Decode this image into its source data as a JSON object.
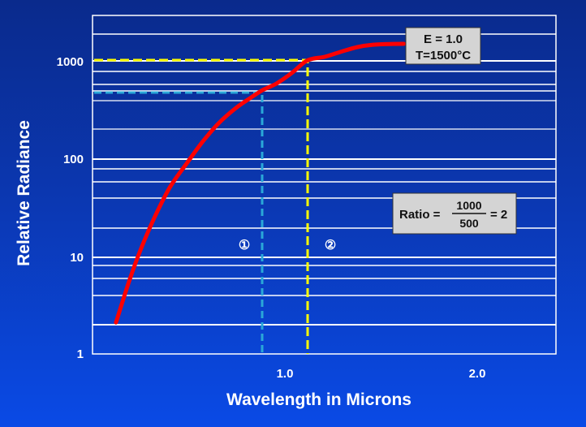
{
  "chart_data": {
    "type": "line",
    "title": "",
    "xlabel": "Wavelength in Microns",
    "ylabel": "Relative Radiance",
    "yscale": "log",
    "ylim": [
      1,
      3000
    ],
    "xlim": [
      0.0,
      2.4
    ],
    "x_ticks": [
      {
        "value": 1.0,
        "label": "1.0"
      },
      {
        "value": 2.0,
        "label": "2.0"
      }
    ],
    "y_ticks": [
      {
        "value": 1,
        "label": "1"
      },
      {
        "value": 10,
        "label": "10"
      },
      {
        "value": 100,
        "label": "100"
      },
      {
        "value": 1000,
        "label": "1000"
      }
    ],
    "grid": true,
    "series": [
      {
        "name": "E = 1.0, T=1500°C",
        "color": "#ff0000",
        "x": [
          0.13,
          0.2,
          0.26,
          0.33,
          0.41,
          0.5,
          0.58,
          0.66,
          0.75,
          0.83,
          0.89,
          0.96,
          1.04,
          1.12,
          1.21,
          1.29,
          1.38,
          1.46,
          1.55,
          1.62
        ],
        "values": [
          2.1,
          5.7,
          12,
          25,
          51,
          91,
          149,
          227,
          326,
          419,
          500,
          580,
          745,
          1000,
          1090,
          1220,
          1370,
          1450,
          1475,
          1480
        ]
      }
    ],
    "reference_lines": [
      {
        "id": "1",
        "label": "①",
        "wavelength": 0.89,
        "radiance": 500,
        "color": "#2aa8d8",
        "style": "dashed"
      },
      {
        "id": "2",
        "label": "②",
        "wavelength": 1.12,
        "radiance": 1000,
        "color": "#ffff00",
        "style": "dashed"
      }
    ],
    "annotations": [
      {
        "text_line1": "E = 1.0",
        "text_line2": "T=1500°C"
      },
      {
        "text": "Ratio = 1000/500 = 2",
        "prefix": "Ratio =",
        "numerator": "1000",
        "denominator": "500",
        "suffix": "= 2"
      }
    ],
    "legend_position": "none"
  },
  "labels": {
    "y_axis_title": "Relative Radiance",
    "x_axis_title": "Wavelength in Microns",
    "y_tick_1": "1",
    "y_tick_10": "10",
    "y_tick_100": "100",
    "y_tick_1000": "1000",
    "x_tick_1": "1.0",
    "x_tick_2": "2.0",
    "marker_1": "①",
    "marker_2": "②",
    "curve_box_line1": "E = 1.0",
    "curve_box_line2": "T=1500°C",
    "ratio_prefix": "Ratio =",
    "ratio_numerator": "1000",
    "ratio_denominator": "500",
    "ratio_suffix": "= 2"
  },
  "colors": {
    "curve": "#ff0000",
    "line_1": "#2aa8d8",
    "line_2": "#ffff00",
    "grid": "#ffffff",
    "box_fill": "#d4d4d4"
  }
}
